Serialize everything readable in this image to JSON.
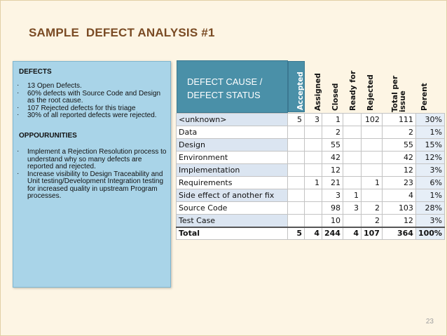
{
  "slide": {
    "title": "SAMPLE  DEFECT ANALYSIS #1",
    "page_number": "23"
  },
  "defects": {
    "heading": "DEFECTS",
    "items": [
      "13 Open Defects.",
      "60% defects with Source Code and Design as the root cause.",
      "107 Rejected defects for this triage",
      "30% of all reported defects were rejected."
    ]
  },
  "opportunities": {
    "heading": "OPPOURUNITIES",
    "items": [
      "Implement a Rejection Resolution process to understand why so many defects are reported and rejected.",
      "Increase visibility to Design Traceability and Unit testing/Development Integration testing for increased quality in upstream Program processes."
    ]
  },
  "table": {
    "corner_label_line1": "DEFECT CAUSE /",
    "corner_label_line2": "DEFECT STATUS",
    "columns": [
      "Accepted",
      "Assigned",
      "Closed",
      "Ready for",
      "Rejected",
      "Total per issue",
      "Perent"
    ],
    "rows": [
      {
        "label": "<unknown>",
        "values": [
          "5",
          "3",
          "1",
          "",
          "102",
          "111",
          "30%"
        ]
      },
      {
        "label": "Data",
        "values": [
          "",
          "",
          "2",
          "",
          "",
          "2",
          "1%"
        ]
      },
      {
        "label": "Design",
        "values": [
          "",
          "",
          "55",
          "",
          "",
          "55",
          "15%"
        ]
      },
      {
        "label": "Environment",
        "values": [
          "",
          "",
          "42",
          "",
          "",
          "42",
          "12%"
        ]
      },
      {
        "label": "Implementation",
        "values": [
          "",
          "",
          "12",
          "",
          "",
          "12",
          "3%"
        ]
      },
      {
        "label": "Requirements",
        "values": [
          "",
          "1",
          "21",
          "",
          "1",
          "23",
          "6%"
        ]
      },
      {
        "label": "Side effect of another fix",
        "values": [
          "",
          "",
          "3",
          "1",
          "",
          "4",
          "1%"
        ]
      },
      {
        "label": "Source Code",
        "values": [
          "",
          "",
          "98",
          "3",
          "2",
          "103",
          "28%"
        ]
      },
      {
        "label": "Test Case",
        "values": [
          "",
          "",
          "10",
          "",
          "2",
          "12",
          "3%"
        ]
      }
    ],
    "total": {
      "label": "Total",
      "values": [
        "5",
        "4",
        "244",
        "4",
        "107",
        "364",
        "100%"
      ]
    }
  }
}
